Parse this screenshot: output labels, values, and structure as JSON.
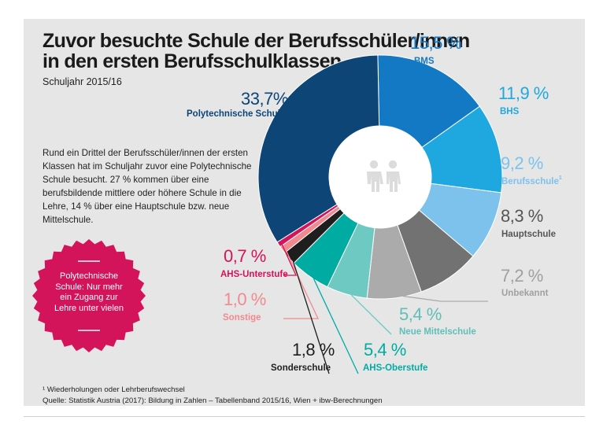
{
  "header": {
    "title_line1": "Zuvor besuchte Schule der Berufsschüler/innen",
    "title_line2": "in den ersten Berufsschulklassen",
    "subtitle": "Schuljahr 2015/16"
  },
  "description": "Rund ein Drittel der Berufsschüler/innen der ersten Klassen hat im Schuljahr zuvor eine Polytechnische Schule besucht. 27 % kommen über eine berufsbildende mittlere oder höhere Schule in die Lehre, 14 % über eine Hauptschule bzw. neue Mittelschule.",
  "callout": {
    "text": "Polytechnische Schule: Nur mehr ein Zugang zur Lehre unter vielen",
    "color": "#d4145a"
  },
  "center_icon": "two-people-icon",
  "footnotes": {
    "note": "¹ Wiederholungen oder Lehrberufswechsel",
    "source": "Quelle: Statistik Austria (2017): Bildung in Zahlen – Tabellenband 2015/16, Wien + ibw-Berechnungen"
  },
  "chart_data": {
    "type": "pie",
    "subtype": "donut",
    "unit": "%",
    "slices": [
      {
        "key": "bms",
        "name": "BMS",
        "value": 15.5,
        "value_label": "15,5 %",
        "color": "#1479c4"
      },
      {
        "key": "bhs",
        "name": "BHS",
        "value": 11.9,
        "value_label": "11,9 %",
        "color": "#1fa8e0"
      },
      {
        "key": "berufsschule",
        "name": "Berufsschule",
        "footnote_mark": "1",
        "value": 9.2,
        "value_label": "9,2 %",
        "color": "#7cc2ec"
      },
      {
        "key": "hauptschule",
        "name": "Hauptschule",
        "value": 8.3,
        "value_label": "8,3 %",
        "color": "#727272"
      },
      {
        "key": "unbekannt",
        "name": "Unbekannt",
        "value": 7.2,
        "value_label": "7,2 %",
        "color": "#ababab"
      },
      {
        "key": "neue_mittelschule",
        "name": "Neue Mittelschule",
        "value": 5.4,
        "value_label": "5,4 %",
        "color": "#6ec9c3"
      },
      {
        "key": "ahs_oberstufe",
        "name": "AHS-Oberstufe",
        "value": 5.4,
        "value_label": "5,4 %",
        "color": "#00aba2"
      },
      {
        "key": "sonderschule",
        "name": "Sonderschule",
        "value": 1.8,
        "value_label": "1,8 %",
        "color": "#1e1e1e"
      },
      {
        "key": "sonstige",
        "name": "Sonstige",
        "value": 1.0,
        "value_label": "1,0 %",
        "color": "#f18a8f"
      },
      {
        "key": "ahs_unterstufe",
        "name": "AHS-Unterstufe",
        "value": 0.7,
        "value_label": "0,7 %",
        "color": "#d4145a"
      },
      {
        "key": "polytechnische_schule",
        "name": "Polytechnische Schule",
        "value": 33.7,
        "value_label": "33,7%",
        "color": "#0d4577"
      }
    ]
  }
}
